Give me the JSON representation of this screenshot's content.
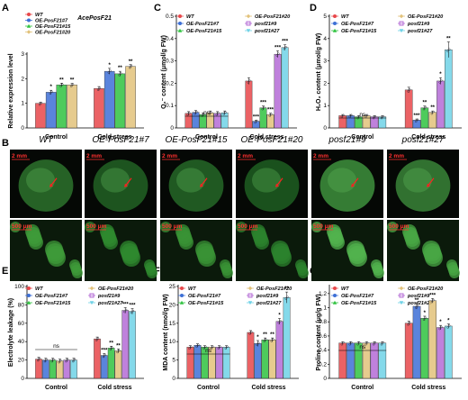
{
  "figure": {
    "panel_letters": [
      "A",
      "B",
      "C",
      "D",
      "E",
      "F",
      "G"
    ],
    "genotypes": [
      "WT",
      "OE-PosF21#7",
      "OE-PosF21#15",
      "OE-PosF21#20",
      "posf21#9",
      "posf21#27"
    ],
    "colors": [
      "#e8474a",
      "#3d6fd6",
      "#2fc23f",
      "#e2c27a",
      "#b46bd6",
      "#6ed2e6"
    ],
    "conditions": [
      "Control",
      "Cold stress"
    ]
  },
  "photo_panel": {
    "headers": [
      "WT",
      "OE-PosF21#7",
      "OE-PosF21#15",
      "OE-PosF21#20",
      "posf21#9",
      "posf21#27"
    ],
    "scale_top": "2 mm",
    "scale_bottom": "500 μm"
  },
  "chart_data": [
    {
      "id": "A",
      "type": "bar",
      "title": "AcePosF21",
      "ylabel": "Relative expression level",
      "ylim": [
        0,
        3
      ],
      "yticks": [
        0,
        1,
        2,
        3
      ],
      "categories": [
        "Control",
        "Cold stress"
      ],
      "series_names": [
        "WT",
        "OE-PosF21#7",
        "OE-PosF21#15",
        "OE-PosF21#20"
      ],
      "values": [
        [
          1.0,
          1.45,
          1.75,
          1.75
        ],
        [
          1.6,
          2.3,
          2.2,
          2.5
        ]
      ],
      "errors": [
        [
          0.05,
          0.08,
          0.07,
          0.06
        ],
        [
          0.08,
          0.12,
          0.1,
          0.07
        ]
      ],
      "sig": [
        [
          "",
          "*",
          "**",
          "**"
        ],
        [
          "",
          "*",
          "**",
          "**"
        ]
      ],
      "ns_label": ""
    },
    {
      "id": "C",
      "type": "bar",
      "ylabel": "O₂⁻ content (μmol/g FW)",
      "ylim": [
        0,
        0.5
      ],
      "yticks": [
        0,
        0.1,
        0.2,
        0.3,
        0.4,
        0.5
      ],
      "categories": [
        "Control",
        "Cold stress"
      ],
      "series_names": [
        "WT",
        "OE-PosF21#7",
        "OE-PosF21#15",
        "OE-PosF21#20",
        "posf21#9",
        "posf21#27"
      ],
      "values": [
        [
          0.065,
          0.07,
          0.06,
          0.068,
          0.065,
          0.068
        ],
        [
          0.21,
          0.03,
          0.09,
          0.06,
          0.33,
          0.36
        ]
      ],
      "errors": [
        [
          0.008,
          0.008,
          0.007,
          0.008,
          0.008,
          0.008
        ],
        [
          0.015,
          0.005,
          0.008,
          0.006,
          0.015,
          0.012
        ]
      ],
      "sig": [
        [
          "",
          "",
          "",
          "",
          "",
          ""
        ],
        [
          "",
          "***",
          "***",
          "***",
          "***",
          "***"
        ]
      ],
      "ns_label": "ns"
    },
    {
      "id": "D",
      "type": "bar",
      "ylabel": "H₂O₂ content (μmol/g FW)",
      "ylim": [
        0,
        5
      ],
      "yticks": [
        0,
        1,
        2,
        3,
        4,
        5
      ],
      "categories": [
        "Control",
        "Cold stress"
      ],
      "series_names": [
        "WT",
        "OE-PosF21#7",
        "OE-PosF21#15",
        "OE-PosF21#20",
        "posf21#9",
        "posf21#27"
      ],
      "values": [
        [
          0.55,
          0.55,
          0.5,
          0.55,
          0.5,
          0.5
        ],
        [
          1.7,
          0.35,
          0.9,
          0.7,
          2.1,
          3.5
        ]
      ],
      "errors": [
        [
          0.05,
          0.05,
          0.05,
          0.05,
          0.05,
          0.05
        ],
        [
          0.12,
          0.05,
          0.08,
          0.06,
          0.15,
          0.35
        ]
      ],
      "sig": [
        [
          "",
          "",
          "",
          "",
          "",
          ""
        ],
        [
          "",
          "***",
          "**",
          "**",
          "*",
          "**"
        ]
      ],
      "ns_label": "ns"
    },
    {
      "id": "E",
      "type": "bar",
      "ylabel": "Electrolyte leakage (%)",
      "ylim": [
        0,
        100
      ],
      "yticks": [
        0,
        20,
        40,
        60,
        80,
        100
      ],
      "categories": [
        "Control",
        "Cold stress"
      ],
      "series_names": [
        "WT",
        "OE-PosF21#7",
        "OE-PosF21#15",
        "OE-PosF21#20",
        "posf21#9",
        "posf21#27"
      ],
      "values": [
        [
          21,
          20,
          20,
          19,
          20,
          20
        ],
        [
          43,
          25,
          33,
          30,
          74,
          73
        ]
      ],
      "errors": [
        [
          2,
          2,
          2,
          2,
          2,
          2
        ],
        [
          2,
          2,
          2,
          2,
          3,
          3
        ]
      ],
      "sig": [
        [
          "",
          "",
          "",
          "",
          "",
          ""
        ],
        [
          "",
          "***",
          "**",
          "**",
          "***",
          "***"
        ]
      ],
      "ns_label": "ns"
    },
    {
      "id": "F",
      "type": "bar",
      "ylabel": "MDA content (nmol/g FW)",
      "ylim": [
        0,
        25
      ],
      "yticks": [
        0,
        5,
        10,
        15,
        20,
        25
      ],
      "categories": [
        "Control",
        "Cold stress"
      ],
      "series_names": [
        "WT",
        "OE-PosF21#7",
        "OE-PosF21#15",
        "OE-PosF21#20",
        "posf21#9",
        "posf21#27"
      ],
      "values": [
        [
          8.5,
          9.0,
          8.5,
          8.5,
          8.5,
          8.5
        ],
        [
          12.5,
          9.5,
          10.5,
          10.5,
          15.5,
          22.0
        ]
      ],
      "errors": [
        [
          0.4,
          0.4,
          0.4,
          0.4,
          0.4,
          0.4
        ],
        [
          0.5,
          0.8,
          0.5,
          0.5,
          0.8,
          1.5
        ]
      ],
      "sig": [
        [
          "",
          "",
          "",
          "",
          "",
          ""
        ],
        [
          "",
          "*",
          "**",
          "**",
          "*",
          "**"
        ]
      ],
      "ns_label": "ns"
    },
    {
      "id": "G",
      "type": "bar",
      "ylabel": "Proline content (μg/g FW)",
      "ylim": [
        0,
        1.3
      ],
      "yticks": [
        0,
        0.2,
        0.4,
        0.6,
        0.8,
        1.0,
        1.2
      ],
      "categories": [
        "Control",
        "Cold stress"
      ],
      "series_names": [
        "WT",
        "OE-PosF21#7",
        "OE-PosF21#15",
        "OE-PosF21#20",
        "posf21#9",
        "posf21#27"
      ],
      "values": [
        [
          0.5,
          0.5,
          0.5,
          0.5,
          0.5,
          0.5
        ],
        [
          0.78,
          1.02,
          0.85,
          1.1,
          0.72,
          0.74
        ]
      ],
      "errors": [
        [
          0.02,
          0.02,
          0.02,
          0.02,
          0.02,
          0.02
        ],
        [
          0.03,
          0.04,
          0.03,
          0.03,
          0.03,
          0.03
        ]
      ],
      "sig": [
        [
          "",
          "",
          "",
          "",
          "",
          ""
        ],
        [
          "",
          "**",
          "*",
          "***",
          "*",
          "*"
        ]
      ],
      "ns_label": "ns"
    }
  ]
}
